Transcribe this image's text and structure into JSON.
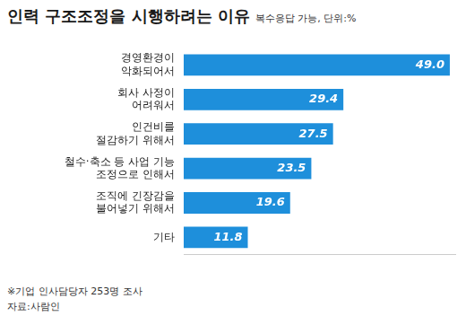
{
  "chart_data": {
    "type": "bar",
    "orientation": "horizontal",
    "title": "인력 구조조정을 시행하려는 이유",
    "subtitle": "복수응답 가능, 단위:%",
    "categories": [
      "경영환경이\n악화되어서",
      "회사 사정이\n어려워서",
      "인건비를\n절감하기 위해서",
      "철수·축소 등 사업 기능\n조정으로 인해서",
      "조직에 긴장감을\n불어넣기 위해서",
      "기타"
    ],
    "values": [
      49.0,
      29.4,
      27.5,
      23.5,
      19.6,
      11.8
    ],
    "value_labels": [
      "49.0",
      "29.4",
      "27.5",
      "23.5",
      "19.6",
      "11.8"
    ],
    "color": "#1e8fdb",
    "xlim": [
      0,
      50
    ],
    "grid": false,
    "tick_labels": "y",
    "data_labels": true,
    "annotations": [
      "※기업 인사담당자 253명 조사",
      "자료:사람인"
    ]
  }
}
